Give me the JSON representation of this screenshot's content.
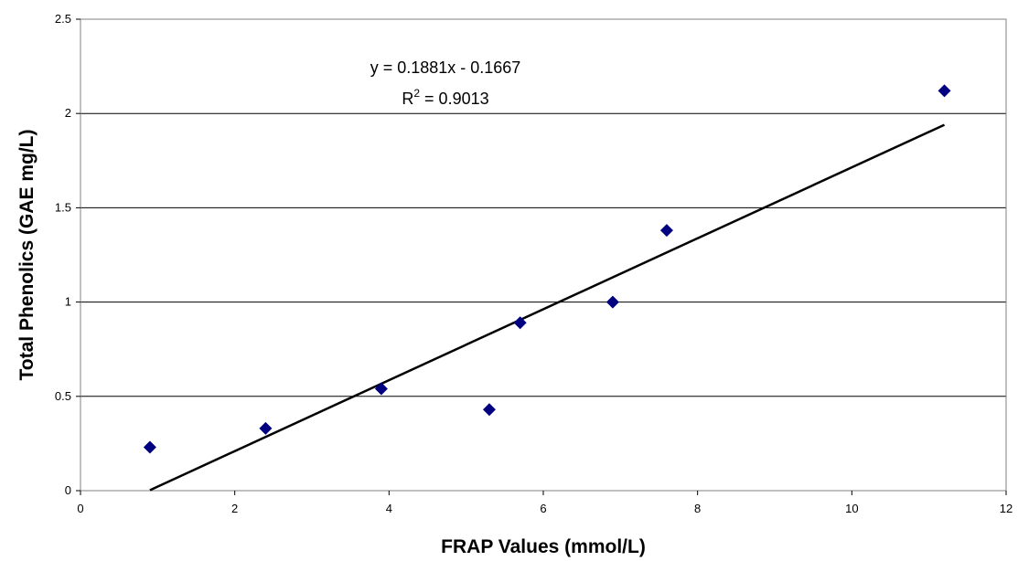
{
  "chart_data": {
    "type": "scatter",
    "xlabel": "FRAP Values (mmol/L)",
    "ylabel": "Total Phenolics (GAE mg/L)",
    "xlim": [
      0,
      12
    ],
    "ylim": [
      0,
      2.5
    ],
    "x_ticks": [
      "0",
      "2",
      "4",
      "6",
      "8",
      "10",
      "12"
    ],
    "y_ticks": [
      "0",
      "0.5",
      "1",
      "1.5",
      "2",
      "2.5"
    ],
    "grid": "horizontal",
    "legend": "none",
    "series": [
      {
        "marker": "diamond",
        "color": "#000080",
        "points": [
          {
            "x": 0.9,
            "y": 0.23
          },
          {
            "x": 2.4,
            "y": 0.33
          },
          {
            "x": 3.9,
            "y": 0.54
          },
          {
            "x": 5.3,
            "y": 0.43
          },
          {
            "x": 5.7,
            "y": 0.89
          },
          {
            "x": 6.9,
            "y": 1.0
          },
          {
            "x": 7.6,
            "y": 1.38
          },
          {
            "x": 11.2,
            "y": 2.12
          }
        ]
      }
    ],
    "trendline": {
      "type": "linear",
      "slope": 0.1881,
      "intercept": -0.1667,
      "x_range": [
        0.9,
        11.2
      ],
      "color": "#000000",
      "equation_text": "y = 0.1881x - 0.1667",
      "r2_prefix": "R",
      "r2_sup": "2",
      "r2_value": " = 0.9013"
    }
  }
}
